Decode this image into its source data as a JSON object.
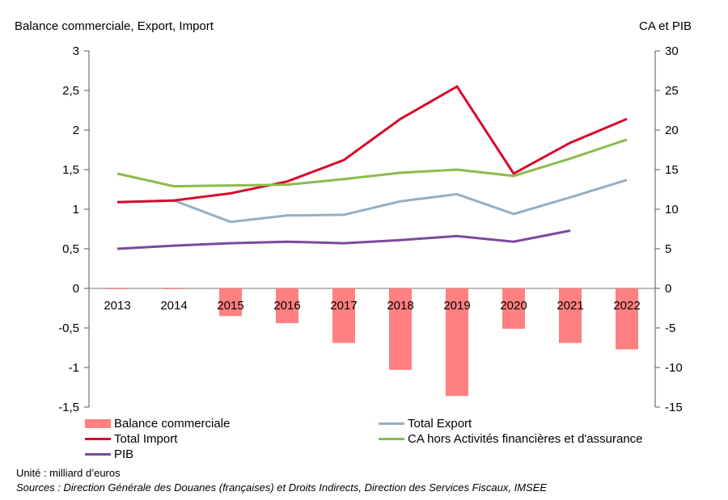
{
  "chart_data": {
    "type": "bar+line",
    "title": "",
    "left_axis_label": "Balance commerciale, Export, Import",
    "right_axis_label": "CA et PIB",
    "left_ylim": [
      -1.5,
      3
    ],
    "right_ylim": [
      -15,
      30
    ],
    "left_ticks": [
      "3",
      "2,5",
      "2",
      "1,5",
      "1",
      "0,5",
      "0",
      "-0,5",
      "-1",
      "-1,5"
    ],
    "right_ticks": [
      "30",
      "25",
      "20",
      "15",
      "10",
      "5",
      "0",
      "-5",
      "-10",
      "-15"
    ],
    "categories": [
      "2013",
      "2014",
      "2015",
      "2016",
      "2017",
      "2018",
      "2019",
      "2020",
      "2021",
      "2022"
    ],
    "grid": false,
    "series": [
      {
        "name": "Balance commerciale",
        "type": "bar",
        "axis": "left",
        "color": "#ff8080",
        "values": [
          -0.01,
          -0.01,
          -0.35,
          -0.44,
          -0.69,
          -1.03,
          -1.36,
          -0.51,
          -0.69,
          -0.77
        ]
      },
      {
        "name": "Total Export",
        "type": "line",
        "axis": "left",
        "color": "#94b0c3",
        "values": [
          1.09,
          1.11,
          0.84,
          0.92,
          0.93,
          1.1,
          1.19,
          0.94,
          1.15,
          1.37
        ]
      },
      {
        "name": "Total Import",
        "type": "line",
        "axis": "left",
        "color": "#d80a2a",
        "values": [
          1.09,
          1.11,
          1.2,
          1.35,
          1.62,
          2.14,
          2.55,
          1.45,
          1.84,
          2.14
        ]
      },
      {
        "name": "CA hors Activités financières et d'assurance",
        "type": "line",
        "axis": "right",
        "color": "#8dbb4d",
        "values": [
          14.5,
          12.9,
          13.0,
          13.1,
          13.8,
          14.6,
          15.0,
          14.2,
          16.4,
          18.8
        ]
      },
      {
        "name": "PIB",
        "type": "line",
        "axis": "right",
        "color": "#7b4a9c",
        "values": [
          5.0,
          5.4,
          5.7,
          5.9,
          5.7,
          6.1,
          6.6,
          5.9,
          7.3,
          null
        ]
      }
    ]
  },
  "legend": {
    "items": [
      {
        "label": "Balance commerciale"
      },
      {
        "label": "Total Export"
      },
      {
        "label": "Total Import"
      },
      {
        "label": "CA hors Activités financières et d'assurance"
      },
      {
        "label": "PIB"
      }
    ]
  },
  "footer": {
    "unit": "Unité : milliard d’euros",
    "sources": "Sources : Direction Générale des Douanes (françaises) et Droits Indirects, Direction des Services Fiscaux, IMSEE"
  }
}
